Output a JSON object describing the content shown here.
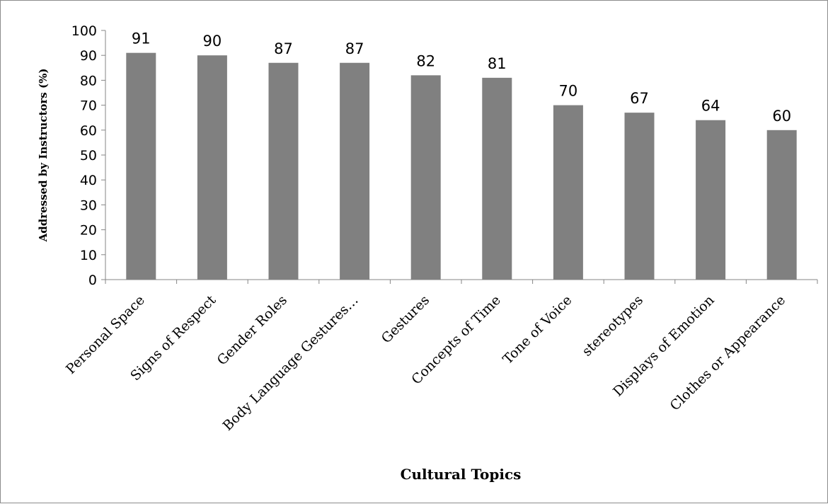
{
  "chart_data": {
    "type": "bar",
    "categories": [
      "Personal Space",
      "Signs of Respect",
      "Gender Roles",
      "Body Language Gestures…",
      "Gestures",
      "Concepts of Time",
      "Tone of Voice",
      "stereotypes",
      "Displays of Emotion",
      "Clothes or Appearance"
    ],
    "values": [
      91,
      90,
      87,
      87,
      82,
      81,
      70,
      67,
      64,
      60
    ],
    "data_labels": [
      "91",
      "90",
      "87",
      "87",
      "82",
      "81",
      "70",
      "67",
      "64",
      "60"
    ],
    "xlabel": "Cultural Topics",
    "ylabel": "Addressed by Instructors (%)",
    "ylim": [
      0,
      100
    ],
    "yticks": [
      "0",
      "10",
      "20",
      "30",
      "40",
      "50",
      "60",
      "70",
      "80",
      "90",
      "100"
    ],
    "grid": false,
    "legend": "none",
    "bar_color": "#808080"
  }
}
